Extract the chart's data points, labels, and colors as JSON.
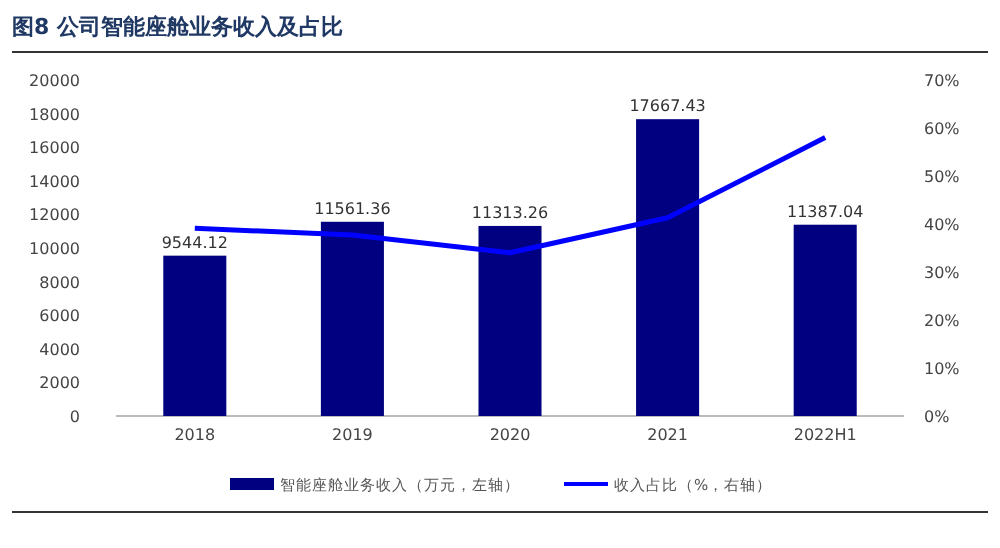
{
  "chart_data": {
    "type": "bar",
    "title": "图8  公司智能座舱业务收入及占比",
    "categories": [
      "2018",
      "2019",
      "2020",
      "2021",
      "2022H1"
    ],
    "series": [
      {
        "name": "智能座舱业务收入（万元，左轴）",
        "color": "#000080",
        "values": [
          9544.12,
          11561.36,
          11313.26,
          17667.43,
          11387.04
        ],
        "value_labels": [
          "9544.12",
          "11561.36",
          "11313.26",
          "17667.43",
          "11387.04"
        ]
      },
      {
        "name": "收入占比（%，右轴）",
        "type": "line",
        "axis": "y2",
        "color": "#0000ff",
        "values": [
          39.1,
          37.7,
          34.0,
          41.3,
          58.0
        ]
      }
    ],
    "ylim": [
      0,
      20000
    ],
    "yticks": [
      0,
      2000,
      4000,
      6000,
      8000,
      10000,
      12000,
      14000,
      16000,
      18000,
      20000
    ],
    "y2lim": [
      0,
      70
    ],
    "y2ticks": [
      {
        "value": 0,
        "label": "0%"
      },
      {
        "value": 10,
        "label": "10%"
      },
      {
        "value": 20,
        "label": "20%"
      },
      {
        "value": 30,
        "label": "30%"
      },
      {
        "value": 40,
        "label": "40%"
      },
      {
        "value": 50,
        "label": "50%"
      },
      {
        "value": 60,
        "label": "60%"
      },
      {
        "value": 70,
        "label": "70%"
      }
    ],
    "legend": "bottom"
  }
}
